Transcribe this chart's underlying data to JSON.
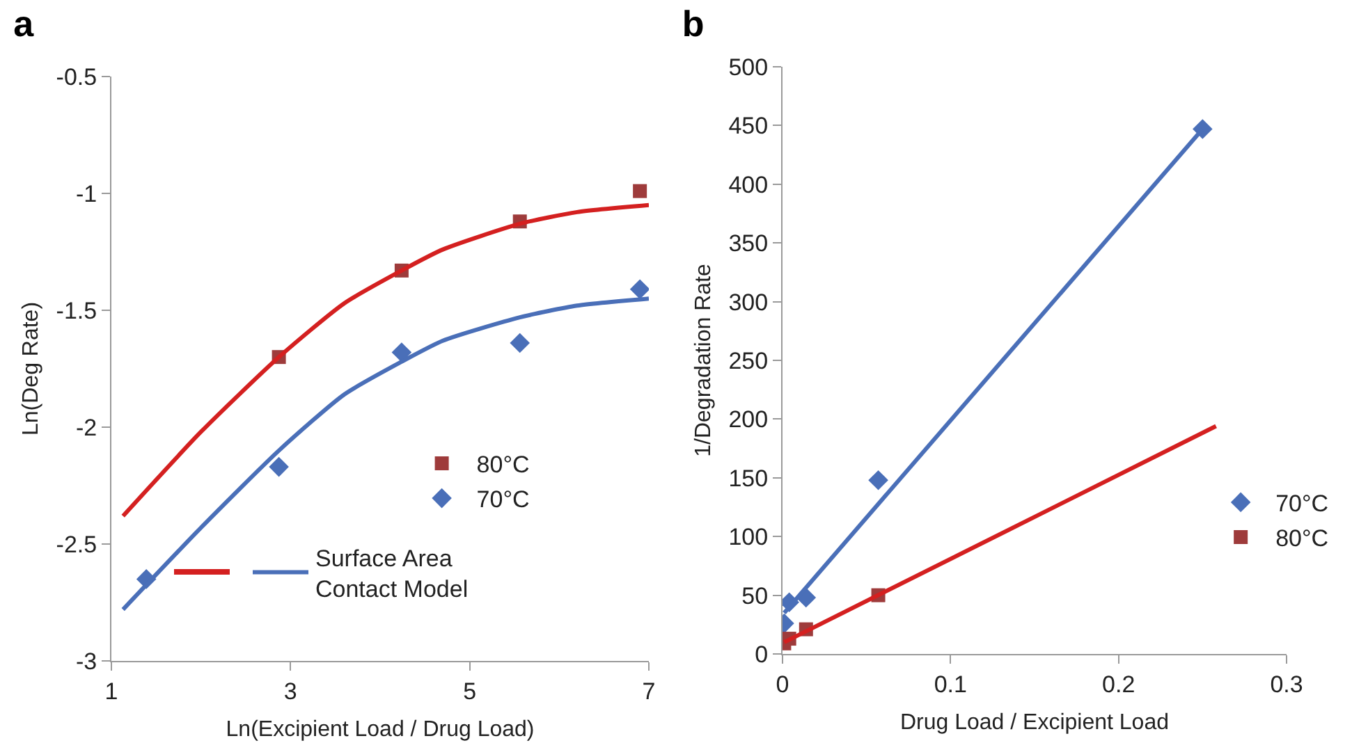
{
  "chart_data": [
    {
      "type": "scatter",
      "title": "a",
      "xlabel": "Ln(Excipient Load / Drug Load)",
      "ylabel": "Ln(Deg Rate)",
      "xlim": [
        1,
        7
      ],
      "xticks": [
        1,
        3,
        5,
        7
      ],
      "ylim": [
        -3,
        -0.5
      ],
      "yticks": [
        -3,
        -2.5,
        -2,
        -1.5,
        -1,
        -0.5
      ],
      "grid": false,
      "legend": "bottom right",
      "series": [
        {
          "name": "80°C",
          "type": "scatter",
          "marker": "square",
          "color": "#9e3b3b",
          "x": [
            2.87,
            4.24,
            5.56,
            6.9
          ],
          "values": [
            -1.7,
            -1.33,
            -1.12,
            -0.99
          ]
        },
        {
          "name": "70°C",
          "type": "scatter",
          "marker": "diamond",
          "color": "#4a6fb8",
          "x": [
            1.39,
            2.87,
            4.24,
            5.56,
            6.9
          ],
          "values": [
            -2.65,
            -2.17,
            -1.68,
            -1.64,
            -1.41
          ]
        },
        {
          "type": "line",
          "marker": "none",
          "color": "#d42020",
          "x": [
            1.13,
            2,
            2.87,
            3.6,
            4.24,
            4.7,
            5.56,
            6.2,
            7
          ],
          "values": [
            -2.38,
            -2.02,
            -1.7,
            -1.47,
            -1.33,
            -1.24,
            -1.13,
            -1.08,
            -1.05
          ]
        },
        {
          "name": "Surface Area Contact Model",
          "type": "line",
          "marker": "none",
          "color": "#4a6fb8",
          "x": [
            1.13,
            2,
            2.87,
            3.6,
            4.24,
            4.7,
            5.56,
            6.2,
            7
          ],
          "values": [
            -2.78,
            -2.43,
            -2.1,
            -1.86,
            -1.72,
            -1.63,
            -1.53,
            -1.48,
            -1.45
          ]
        }
      ]
    },
    {
      "type": "scatter",
      "title": "b",
      "xlabel": "Drug Load / Excipient Load",
      "ylabel": "1/Degradation Rate",
      "xlim": [
        0,
        0.3
      ],
      "xticks": [
        0,
        0.1,
        0.2,
        0.3
      ],
      "ylim": [
        0,
        500
      ],
      "yticks": [
        0,
        50,
        100,
        150,
        200,
        250,
        300,
        350,
        400,
        450,
        500
      ],
      "grid": false,
      "legend": "right",
      "series": [
        {
          "name": "70°C",
          "type": "scatter",
          "marker": "diamond",
          "color": "#4a6fb8",
          "x": [
            0.001,
            0.004,
            0.014,
            0.057,
            0.25
          ],
          "values": [
            26,
            44,
            48,
            148,
            447
          ]
        },
        {
          "name": "80°C",
          "type": "scatter",
          "marker": "square",
          "color": "#9e3b3b",
          "x": [
            0.001,
            0.004,
            0.014,
            0.057
          ],
          "values": [
            9,
            13,
            21,
            50
          ]
        },
        {
          "type": "line",
          "marker": "none",
          "color": "#4a6fb8",
          "x": [
            0.001,
            0.25
          ],
          "values": [
            35,
            447
          ]
        },
        {
          "type": "line",
          "marker": "none",
          "color": "#d42020",
          "x": [
            0.001,
            0.258
          ],
          "values": [
            10,
            194
          ]
        }
      ]
    }
  ]
}
